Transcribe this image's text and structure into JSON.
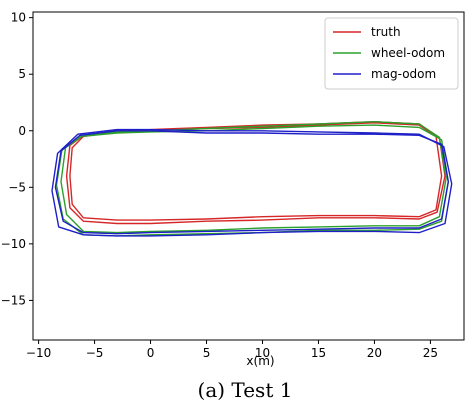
{
  "chart_data": {
    "type": "line",
    "title": "",
    "xlabel": "x(m)",
    "ylabel": "",
    "caption": "(a) Test 1",
    "xlim": [
      -10.5,
      28
    ],
    "ylim": [
      -18.5,
      10.5
    ],
    "xticks": [
      -10,
      -5,
      0,
      5,
      10,
      15,
      20,
      25
    ],
    "yticks": [
      10,
      5,
      0,
      -5,
      -10,
      -15
    ],
    "grid": false,
    "legend_position": "top-right",
    "series": [
      {
        "name": "truth",
        "color": "#d62728",
        "laps": [
          {
            "x": [
              0,
              5,
              10,
              15,
              20,
              24,
              25.5,
              26,
              25.5,
              24,
              20,
              15,
              10,
              5,
              0,
              -3,
              -6,
              -7,
              -7.2,
              -7,
              -6,
              -3,
              0
            ],
            "y": [
              0,
              0.2,
              0.3,
              0.5,
              0.7,
              0.5,
              -0.5,
              -4,
              -7,
              -7.6,
              -7.5,
              -7.5,
              -7.6,
              -7.8,
              -7.9,
              -7.9,
              -7.7,
              -6.5,
              -4,
              -1.5,
              -0.5,
              -0.1,
              0
            ]
          },
          {
            "x": [
              0,
              5,
              10,
              15,
              20,
              24,
              25.8,
              26.3,
              25.6,
              24,
              20,
              15,
              10,
              5,
              0,
              -3,
              -6,
              -7.2,
              -7.5,
              -7.2,
              -6,
              -3,
              0
            ],
            "y": [
              0.1,
              0.3,
              0.5,
              0.6,
              0.8,
              0.6,
              -0.6,
              -4,
              -7.2,
              -7.8,
              -7.7,
              -7.7,
              -7.9,
              -8,
              -8.2,
              -8.2,
              -8,
              -6.8,
              -4,
              -1.3,
              -0.4,
              0,
              0.1
            ]
          }
        ]
      },
      {
        "name": "wheel-odom",
        "color": "#2ca02c",
        "laps": [
          {
            "x": [
              0,
              5,
              10,
              15,
              20,
              24,
              25.8,
              26.4,
              25.8,
              24,
              20,
              15,
              10,
              5,
              0,
              -3,
              -6,
              -7.5,
              -8,
              -7.6,
              -6,
              -3,
              0
            ],
            "y": [
              0,
              0.2,
              0.4,
              0.6,
              0.8,
              0.6,
              -0.6,
              -4.2,
              -7.6,
              -8.4,
              -8.4,
              -8.5,
              -8.6,
              -8.8,
              -8.9,
              -9,
              -8.9,
              -7.4,
              -4.5,
              -1.5,
              -0.4,
              -0.1,
              0
            ]
          },
          {
            "x": [
              0,
              5,
              10,
              15,
              20,
              24,
              26,
              26.6,
              26,
              24,
              20,
              15,
              10,
              5,
              0,
              -3,
              -6,
              -7.8,
              -8.4,
              -7.9,
              -6.2,
              -3,
              0
            ],
            "y": [
              -0.1,
              0,
              0.2,
              0.4,
              0.5,
              0.3,
              -0.8,
              -4.5,
              -8,
              -8.7,
              -8.8,
              -8.8,
              -9,
              -9.1,
              -9.2,
              -9.3,
              -9.2,
              -7.8,
              -4.8,
              -1.6,
              -0.5,
              -0.2,
              -0.1
            ]
          }
        ]
      },
      {
        "name": "mag-odom",
        "color": "#1f1fc8",
        "laps": [
          {
            "x": [
              0,
              5,
              10,
              15,
              20,
              24,
              26,
              26.6,
              26,
              24,
              20,
              15,
              10,
              5,
              0,
              -3,
              -6,
              -7.8,
              -8.5,
              -8,
              -6.3,
              -3,
              0
            ],
            "y": [
              0,
              -0.2,
              -0.2,
              -0.3,
              -0.3,
              -0.4,
              -1.2,
              -4.5,
              -7.8,
              -8.6,
              -8.6,
              -8.7,
              -8.8,
              -8.9,
              -9,
              -9.1,
              -9,
              -8,
              -5,
              -1.8,
              -0.4,
              0,
              0
            ]
          },
          {
            "x": [
              0,
              5,
              10,
              15,
              20,
              24,
              26.2,
              26.9,
              26.3,
              24,
              20,
              15,
              10,
              5,
              0,
              -3,
              -6,
              -8.2,
              -8.8,
              -8.3,
              -6.5,
              -3,
              0
            ],
            "y": [
              0.1,
              0,
              0,
              -0.1,
              -0.2,
              -0.3,
              -1.4,
              -4.7,
              -8.2,
              -9,
              -8.9,
              -8.9,
              -9,
              -9.2,
              -9.3,
              -9.3,
              -9.2,
              -8.5,
              -5.3,
              -2,
              -0.3,
              0.1,
              0.1
            ]
          }
        ]
      }
    ]
  }
}
